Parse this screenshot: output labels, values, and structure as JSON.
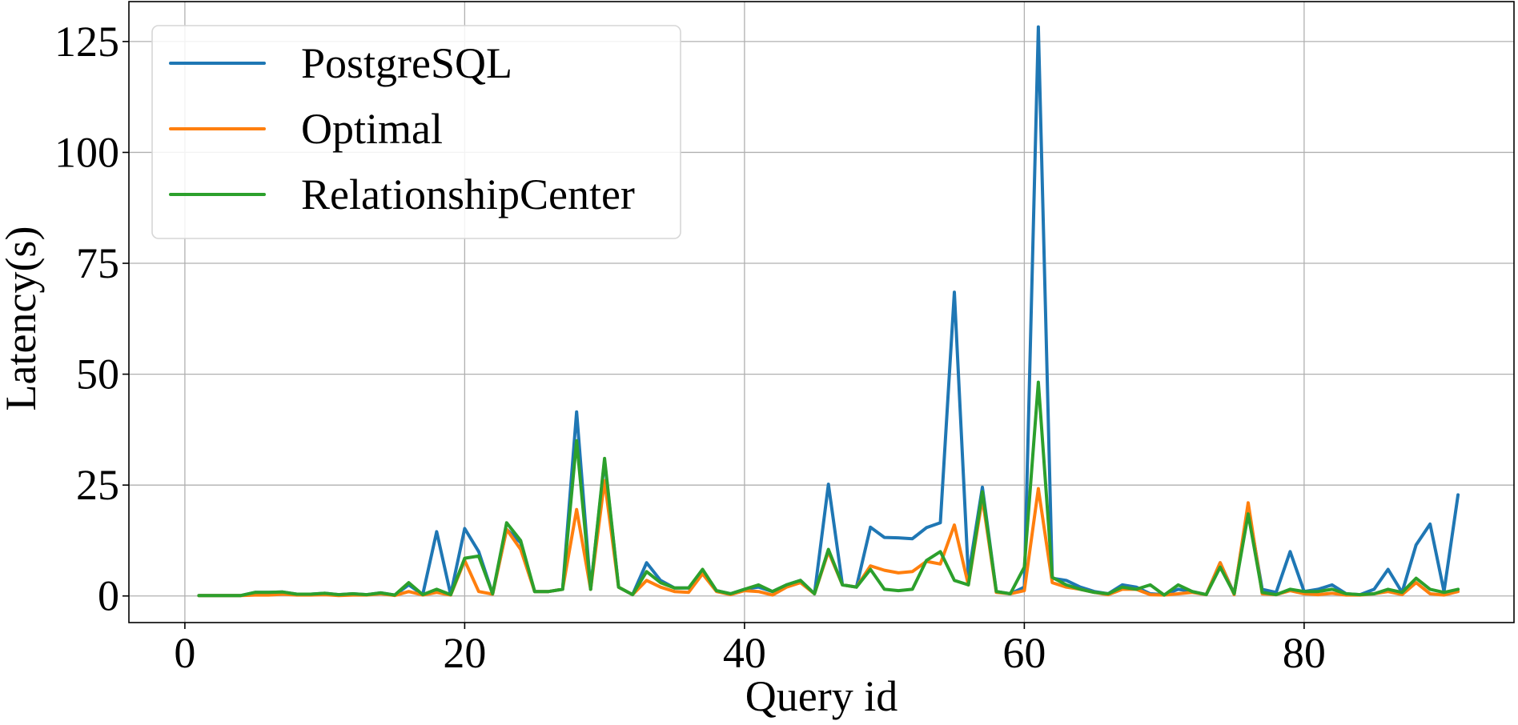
{
  "chart_data": {
    "type": "line",
    "xlabel": "Query id",
    "ylabel": "Latency(s)",
    "xlim": [
      -4,
      95
    ],
    "ylim": [
      -6,
      134
    ],
    "x_ticks": [
      0,
      20,
      40,
      60,
      80
    ],
    "y_ticks": [
      0,
      25,
      50,
      75,
      100,
      125
    ],
    "grid": true,
    "legend_position": "top-left",
    "x": [
      1,
      2,
      3,
      4,
      5,
      6,
      7,
      8,
      9,
      10,
      11,
      12,
      13,
      14,
      15,
      16,
      17,
      18,
      19,
      20,
      21,
      22,
      23,
      24,
      25,
      26,
      27,
      28,
      29,
      30,
      31,
      32,
      33,
      34,
      35,
      36,
      37,
      38,
      39,
      40,
      41,
      42,
      43,
      44,
      45,
      46,
      47,
      48,
      49,
      50,
      51,
      52,
      53,
      54,
      55,
      56,
      57,
      58,
      59,
      60,
      61,
      62,
      63,
      64,
      65,
      66,
      67,
      68,
      69,
      70,
      71,
      72,
      73,
      74,
      75,
      76,
      77,
      78,
      79,
      80,
      81,
      82,
      83,
      84,
      85,
      86,
      87,
      88,
      89,
      90,
      91
    ],
    "series": [
      {
        "name": "PostgreSQL",
        "color": "#1f77b4",
        "values": [
          0.1,
          0.1,
          0.1,
          0.1,
          0.8,
          0.8,
          0.9,
          0.4,
          0.4,
          0.6,
          0.3,
          0.5,
          0.3,
          0.7,
          0.2,
          2.5,
          0.3,
          14.5,
          0.3,
          15.2,
          10,
          0.5,
          15,
          12,
          1,
          1,
          1.5,
          41.5,
          1.5,
          30.5,
          2,
          0.3,
          7.5,
          3.5,
          1.8,
          1.8,
          5,
          1.2,
          0.5,
          1.5,
          2,
          1,
          2.5,
          3.5,
          0.5,
          25.2,
          2.5,
          2,
          15.5,
          13.2,
          13.1,
          12.9,
          15.4,
          16.5,
          68.5,
          4.5,
          24.5,
          1,
          0.5,
          2,
          128.3,
          4,
          3.5,
          2,
          1,
          0.5,
          2.5,
          2,
          0.5,
          0.3,
          1.5,
          1,
          0.3,
          7.5,
          0.5,
          20,
          1.5,
          0.8,
          10,
          1,
          1.5,
          2.5,
          0.5,
          0.3,
          1.5,
          6,
          0.8,
          11.5,
          16.2,
          1,
          22.8
        ]
      },
      {
        "name": "Optimal",
        "color": "#ff7f0e",
        "values": [
          0.1,
          0.1,
          0.1,
          0.1,
          0.2,
          0.2,
          0.4,
          0.2,
          0.2,
          0.3,
          0.1,
          0.2,
          0.2,
          0.5,
          0.1,
          1,
          0.2,
          0.8,
          0.2,
          8,
          1,
          0.4,
          15,
          10.5,
          1,
          1,
          1.5,
          19.5,
          1.5,
          26,
          2,
          0.3,
          3.5,
          2,
          1,
          0.8,
          5,
          1,
          0.3,
          1.2,
          1,
          0.2,
          2,
          3,
          0.5,
          10,
          2.5,
          2,
          6.8,
          5.8,
          5.2,
          5.5,
          7.8,
          7.2,
          16,
          2.5,
          22,
          0.8,
          0.5,
          1.2,
          24.2,
          3,
          2,
          1.5,
          0.8,
          0.3,
          1.5,
          1.5,
          0.3,
          0.2,
          0.5,
          0.8,
          0.3,
          7.5,
          0.3,
          21,
          0.5,
          0.3,
          1.2,
          0.5,
          0.3,
          0.6,
          0.2,
          0.2,
          0.5,
          1,
          0.3,
          3,
          0.5,
          0.2,
          1
        ]
      },
      {
        "name": "RelationshipCenter",
        "color": "#2ca02c",
        "values": [
          0.1,
          0.1,
          0.1,
          0.1,
          0.8,
          0.8,
          0.9,
          0.4,
          0.4,
          0.6,
          0.3,
          0.5,
          0.3,
          0.7,
          0.2,
          3,
          0.3,
          1.5,
          0.3,
          8.5,
          9,
          0.5,
          16.5,
          12.5,
          1,
          1,
          1.5,
          35,
          1.5,
          31,
          2,
          0.3,
          5.5,
          3,
          1.8,
          1.8,
          6,
          1.2,
          0.5,
          1.5,
          2.5,
          1,
          2.5,
          3.5,
          0.5,
          10.5,
          2.5,
          2,
          6,
          1.5,
          1.2,
          1.5,
          8,
          10,
          3.5,
          2.5,
          23.5,
          1,
          0.5,
          6.5,
          48.2,
          4.2,
          2.5,
          1.5,
          0.8,
          0.5,
          2,
          1.5,
          2.5,
          0.2,
          2.5,
          1,
          0.3,
          6.5,
          0.5,
          18.5,
          0.8,
          0.3,
          1.5,
          1,
          1,
          1.5,
          0.5,
          0.3,
          0.5,
          1.5,
          0.8,
          4,
          1.5,
          0.8,
          1.5
        ]
      }
    ]
  }
}
